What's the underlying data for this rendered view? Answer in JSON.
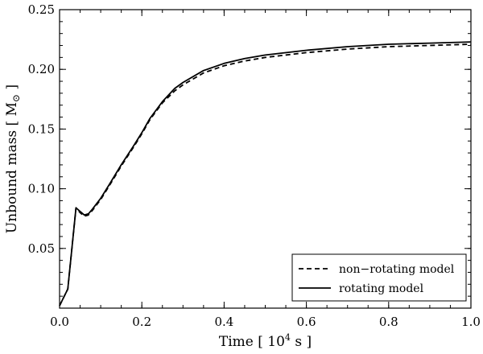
{
  "chart_data": {
    "type": "line",
    "xlabel": "Time  [ 10",
    "xlabel_exp": "4",
    "xlabel_unit": " s ]",
    "ylabel": "Unbound mass  [ M",
    "ylabel_sub": "⊙",
    "ylabel_close": " ]",
    "xlim": [
      0.0,
      1.0
    ],
    "ylim": [
      0.0,
      0.25
    ],
    "x_ticks": [
      0.0,
      0.2,
      0.4,
      0.6,
      0.8,
      1.0
    ],
    "x_tick_labels": [
      "0.0",
      "0.2",
      "0.4",
      "0.6",
      "0.8",
      "1.0"
    ],
    "y_ticks": [
      0.05,
      0.1,
      0.15,
      0.2,
      0.25
    ],
    "y_tick_labels": [
      "0.05",
      "0.10",
      "0.15",
      "0.20",
      "0.25"
    ],
    "legend_position": "bottom-right",
    "series": [
      {
        "name": "non−rotating model",
        "style": "dashed",
        "x": [
          0.0,
          0.01,
          0.02,
          0.03,
          0.04,
          0.05,
          0.06,
          0.07,
          0.08,
          0.1,
          0.12,
          0.15,
          0.18,
          0.2,
          0.22,
          0.25,
          0.28,
          0.3,
          0.35,
          0.4,
          0.45,
          0.5,
          0.6,
          0.7,
          0.8,
          0.9,
          1.0
        ],
        "y": [
          0.002,
          0.009,
          0.016,
          0.05,
          0.084,
          0.08,
          0.077,
          0.078,
          0.082,
          0.091,
          0.102,
          0.119,
          0.135,
          0.146,
          0.158,
          0.172,
          0.182,
          0.187,
          0.197,
          0.203,
          0.207,
          0.21,
          0.214,
          0.217,
          0.219,
          0.22,
          0.221
        ]
      },
      {
        "name": "rotating model",
        "style": "solid",
        "x": [
          0.0,
          0.01,
          0.02,
          0.03,
          0.04,
          0.05,
          0.06,
          0.07,
          0.08,
          0.1,
          0.12,
          0.15,
          0.18,
          0.2,
          0.22,
          0.25,
          0.28,
          0.3,
          0.35,
          0.4,
          0.45,
          0.5,
          0.6,
          0.7,
          0.8,
          0.9,
          1.0
        ],
        "y": [
          0.002,
          0.009,
          0.016,
          0.05,
          0.084,
          0.081,
          0.078,
          0.079,
          0.083,
          0.092,
          0.103,
          0.12,
          0.136,
          0.147,
          0.159,
          0.173,
          0.184,
          0.189,
          0.199,
          0.205,
          0.209,
          0.212,
          0.216,
          0.219,
          0.221,
          0.222,
          0.223
        ]
      }
    ]
  }
}
